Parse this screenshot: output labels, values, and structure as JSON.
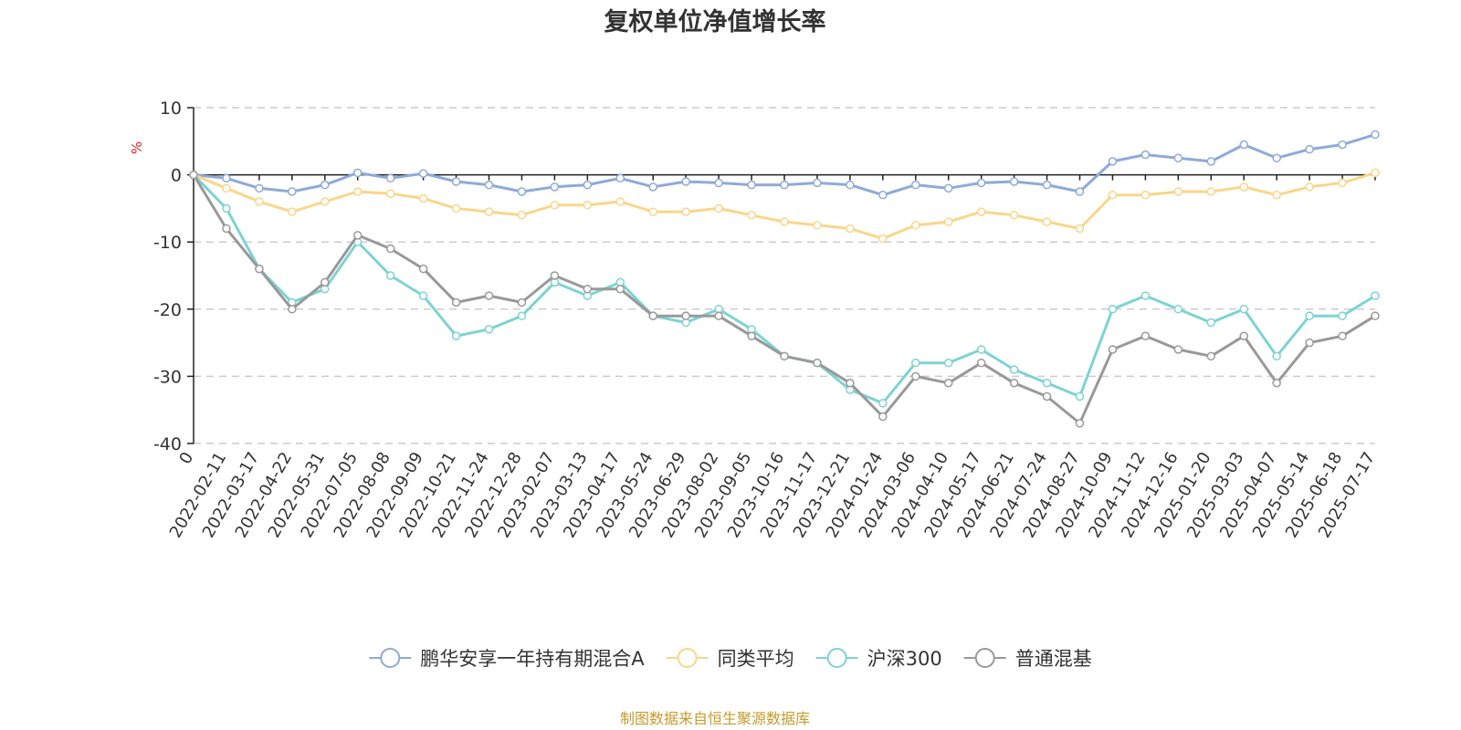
{
  "chart_data": {
    "type": "line",
    "title": "复权单位净值增长率",
    "ylabel": "%",
    "ylim": [
      -40,
      10
    ],
    "yticks": [
      10,
      0,
      -10,
      -20,
      -30,
      -40
    ],
    "grid": true,
    "legend_position": "bottom",
    "x": [
      "0",
      "2022-02-11",
      "2022-03-17",
      "2022-04-22",
      "2022-05-31",
      "2022-07-05",
      "2022-08-08",
      "2022-09-09",
      "2022-10-21",
      "2022-11-24",
      "2022-12-28",
      "2023-02-07",
      "2023-03-13",
      "2023-04-17",
      "2023-05-24",
      "2023-06-29",
      "2023-08-02",
      "2023-09-05",
      "2023-10-16",
      "2023-11-17",
      "2023-12-21",
      "2024-01-24",
      "2024-03-06",
      "2024-04-10",
      "2024-05-17",
      "2024-06-21",
      "2024-07-24",
      "2024-08-27",
      "2024-10-09",
      "2024-11-12",
      "2024-12-16",
      "2025-01-20",
      "2025-03-03",
      "2025-04-07",
      "2025-05-14",
      "2025-06-18",
      "2025-07-17"
    ],
    "series": [
      {
        "name": "鹏华安享一年持有期混合A",
        "color": "#8eaad8",
        "values": [
          0,
          -0.5,
          -2,
          -2.5,
          -1.5,
          0.3,
          -0.5,
          0.2,
          -1,
          -1.5,
          -2.5,
          -1.8,
          -1.5,
          -0.5,
          -1.8,
          -1,
          -1.2,
          -1.5,
          -1.5,
          -1.2,
          -1.5,
          -3,
          -1.5,
          -2,
          -1.2,
          -1,
          -1.5,
          -2.5,
          2,
          3,
          2.5,
          2,
          4.5,
          2.5,
          3.8,
          4.5,
          6
        ]
      },
      {
        "name": "同类平均",
        "color": "#fad68a",
        "values": [
          0,
          -2,
          -4,
          -5.5,
          -4,
          -2.5,
          -2.8,
          -3.5,
          -5,
          -5.5,
          -6,
          -4.5,
          -4.5,
          -4,
          -5.5,
          -5.5,
          -5,
          -6,
          -7,
          -7.5,
          -8,
          -9.5,
          -7.5,
          -7,
          -5.5,
          -6,
          -7,
          -8,
          -3,
          -3,
          -2.5,
          -2.5,
          -1.8,
          -3,
          -1.8,
          -1.2,
          0.3
        ]
      },
      {
        "name": "沪深300",
        "color": "#7dd3d3",
        "values": [
          0,
          -5,
          -14,
          -19,
          -17,
          -10,
          -15,
          -18,
          -24,
          -23,
          -21,
          -16,
          -18,
          -16,
          -21,
          -22,
          -20,
          -23,
          -27,
          -28,
          -32,
          -34,
          -28,
          -28,
          -26,
          -29,
          -31,
          -33,
          -20,
          -18,
          -20,
          -22,
          -20,
          -27,
          -21,
          -21,
          -18
        ]
      },
      {
        "name": "普通混基",
        "color": "#999999",
        "values": [
          0,
          -8,
          -14,
          -20,
          -16,
          -9,
          -11,
          -14,
          -19,
          -18,
          -19,
          -15,
          -17,
          -17,
          -21,
          -21,
          -21,
          -24,
          -27,
          -28,
          -31,
          -36,
          -30,
          -31,
          -28,
          -31,
          -33,
          -37,
          -26,
          -24,
          -26,
          -27,
          -24,
          -31,
          -25,
          -24,
          -21
        ]
      }
    ]
  },
  "source_text": "制图数据来自恒生聚源数据库",
  "colors": {
    "source": "#c79a2c",
    "unit": "#e02020",
    "axis": "#222222",
    "grid": "#cccccc"
  }
}
